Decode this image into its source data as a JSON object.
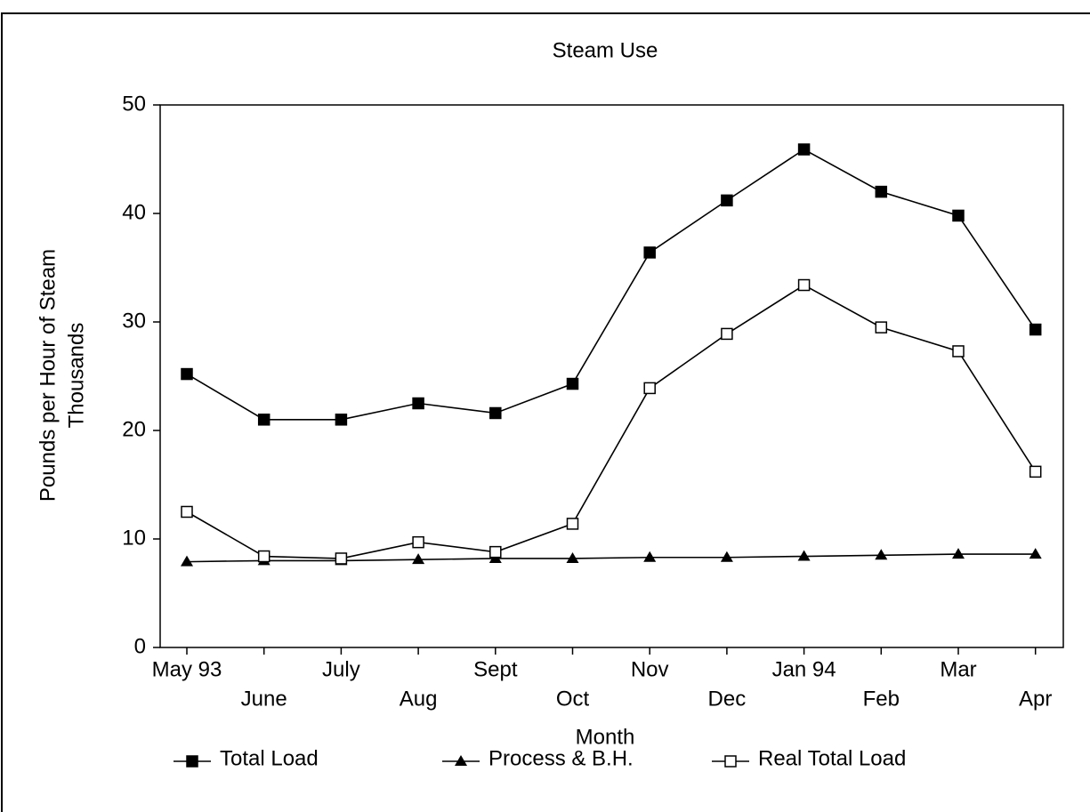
{
  "chart_data": {
    "type": "line",
    "title": "Steam Use",
    "x_label": "Month",
    "y_label": [
      "Pounds per Hour of Steam",
      "Thousands"
    ],
    "categories": [
      "May 93",
      "June",
      "July",
      "Aug",
      "Sept",
      "Oct",
      "Nov",
      "Dec",
      "Jan 94",
      "Feb",
      "Mar",
      "Apr"
    ],
    "series": [
      {
        "name": "Total Load",
        "color": "#000000",
        "marker": "square",
        "values": [
          25.2,
          21.0,
          21.0,
          22.5,
          21.6,
          24.3,
          36.4,
          41.2,
          45.9,
          42.0,
          39.8,
          29.3
        ]
      },
      {
        "name": "Process & B.H.",
        "color": "#000000",
        "marker": "triangle",
        "values": [
          7.9,
          8.0,
          8.0,
          8.1,
          8.2,
          8.2,
          8.3,
          8.3,
          8.4,
          8.5,
          8.6,
          8.6
        ]
      },
      {
        "name": "Real Total Load",
        "color": "#000000",
        "marker": "square-open",
        "values": [
          12.5,
          8.4,
          8.2,
          9.7,
          8.8,
          11.4,
          23.9,
          28.9,
          33.4,
          29.5,
          27.3,
          16.2
        ]
      }
    ],
    "ylim": [
      0,
      50
    ],
    "yticks": [
      0,
      10,
      20,
      30,
      40,
      50
    ],
    "grid": false,
    "legend": "bottom"
  }
}
